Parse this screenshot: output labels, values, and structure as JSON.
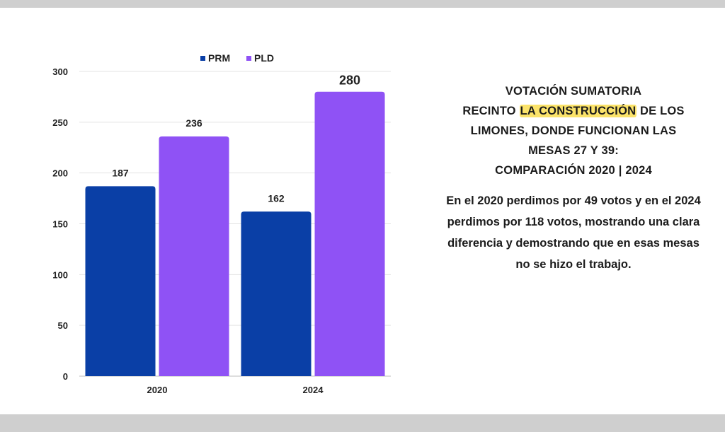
{
  "chart_data": {
    "type": "bar",
    "categories": [
      "2020",
      "2024"
    ],
    "series": [
      {
        "name": "PRM",
        "values": [
          187,
          162
        ],
        "color": "#0a3fa6"
      },
      {
        "name": "PLD",
        "values": [
          236,
          280
        ],
        "color": "#8f52f5"
      }
    ],
    "ylim": [
      0,
      300
    ],
    "yticks": [
      0,
      50,
      100,
      150,
      200,
      250,
      300
    ],
    "grid": true,
    "legend_position": "top"
  },
  "panel": {
    "title_line1": "VOTACIÓN SUMATORIA",
    "title_line2_pre": "RECINTO ",
    "title_line2_highlight": "LA CONSTRUCCIÓN",
    "title_line2_post": " DE LOS",
    "title_line3": "LIMONES, DONDE FUNCIONAN LAS",
    "title_line4": "MESAS 27 Y 39:",
    "title_line5": "COMPARACIÓN 2020 | 2024",
    "body_line1": "En el 2020 perdimos por 49 votos y en el 2024",
    "body_line2": "perdimos por 118 votos, mostrando una clara",
    "body_line3": "diferencia y demostrando que en esas mesas",
    "body_line4": "no se hizo el trabajo.",
    "highlight_color": "#fbe36a"
  }
}
